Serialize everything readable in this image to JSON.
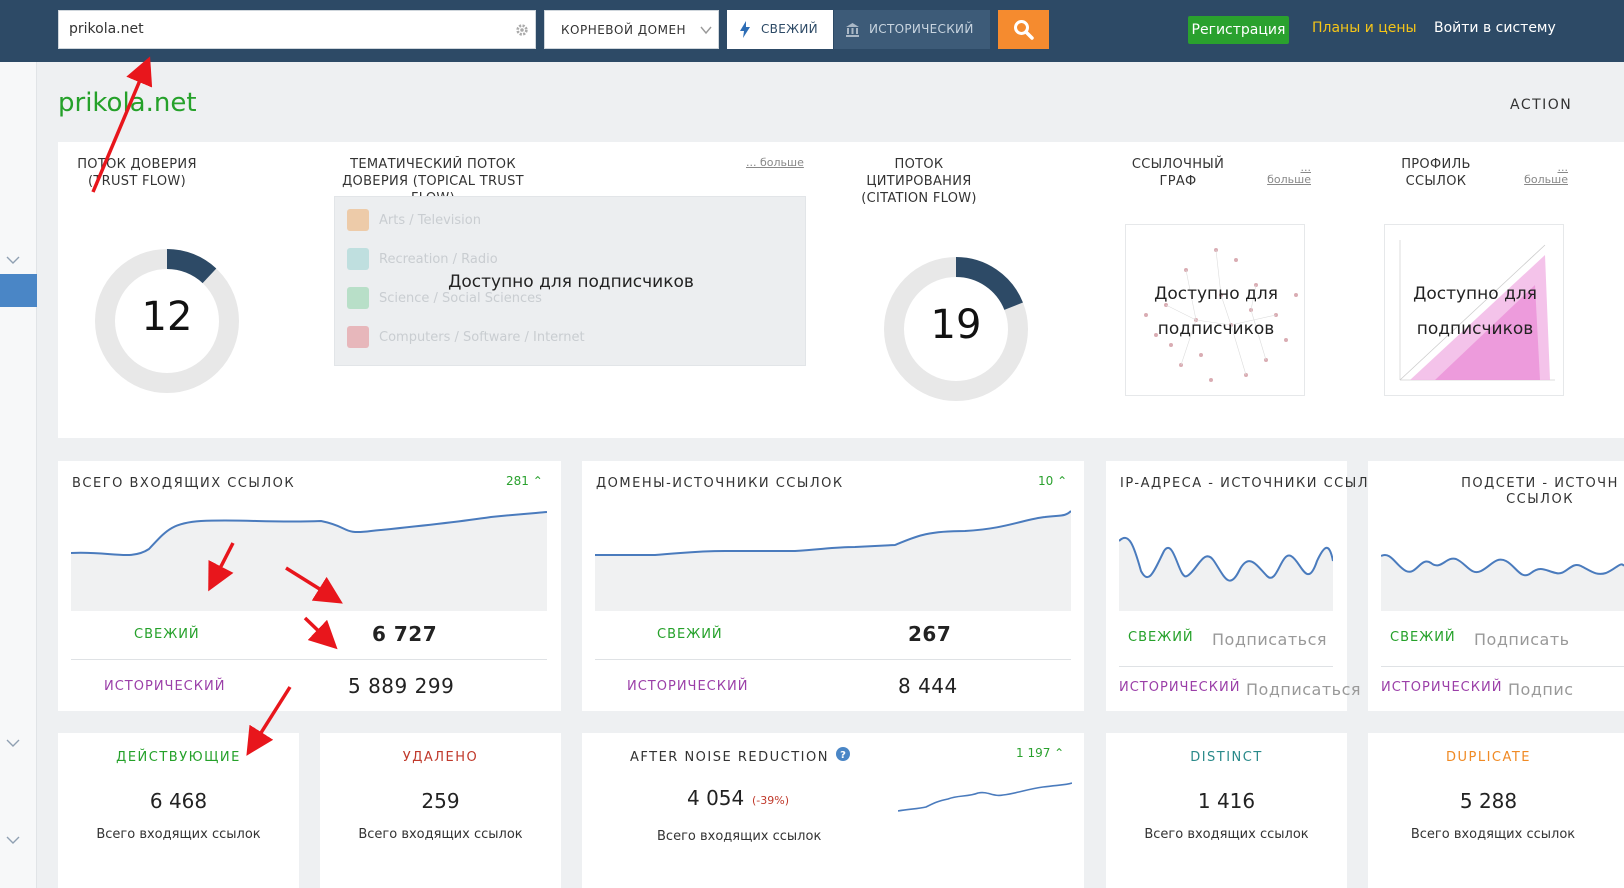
{
  "header": {
    "search_value": "prikola.net",
    "scope_select": "КОРНЕВОЙ ДОМЕН",
    "fresh_label": "СВЕЖИЙ",
    "historic_label": "ИСТОРИЧЕСКИЙ",
    "register_label": "Регистрация",
    "plans_label": "Планы и цены",
    "login_label": "Войти в систему"
  },
  "page": {
    "domain": "prikola.net",
    "actions_label": "ACTION"
  },
  "metrics": {
    "trust_flow": {
      "title": "ПОТОК ДОВЕРИЯ (TRUST FLOW)",
      "value": 12
    },
    "topical": {
      "title": "ТЕМАТИЧЕСКИЙ ПОТОК ДОВЕРИЯ (TOPICAL TRUST FLOW)",
      "more": "... больше",
      "locked": "Доступно для подписчиков",
      "topics": [
        {
          "label": "Arts / Television",
          "color": "#f08a24"
        },
        {
          "label": "Recreation / Radio",
          "color": "#6cc3c0"
        },
        {
          "label": "Science / Social Sciences",
          "color": "#58c27d"
        },
        {
          "label": "Computers / Software / Internet",
          "color": "#e0505a"
        }
      ]
    },
    "citation_flow": {
      "title": "ПОТОК ЦИТИРОВАНИЯ (CITATION FLOW)",
      "value": 19
    },
    "link_graph": {
      "title": "ССЫЛОЧНЫЙ ГРАФ",
      "more": "... больше",
      "locked_1": "Доступно для",
      "locked_2": "подписчиков"
    },
    "link_profile": {
      "title": "ПРОФИЛЬ ССЫЛОК",
      "more": "... больше",
      "locked_1": "Доступно для",
      "locked_2": "подписчиков"
    }
  },
  "cards": {
    "backlinks": {
      "title": "ВСЕГО ВХОДЯЩИХ ССЫЛОК",
      "delta": "281",
      "fresh_label": "СВЕЖИЙ",
      "fresh_value": "6 727",
      "hist_label": "ИСТОРИЧЕСКИЙ",
      "hist_value": "5 889 299"
    },
    "ref_domains": {
      "title": "ДОМЕНЫ-ИСТОЧНИКИ ССЫЛОК",
      "delta": "10",
      "fresh_label": "СВЕЖИЙ",
      "fresh_value": "267",
      "hist_label": "ИСТОРИЧЕСКИЙ",
      "hist_value": "8 444"
    },
    "ref_ips": {
      "title": "IP-АДРЕСА - ИСТОЧНИКИ ССЫЛОК",
      "fresh_label": "СВЕЖИЙ",
      "fresh_value": "Подписаться",
      "hist_label": "ИСТОРИЧЕСКИЙ",
      "hist_value": "Подписаться"
    },
    "ref_subnets": {
      "title_1": "ПОДСЕТИ - ИСТОЧН",
      "title_2": "ССЫЛОК",
      "fresh_label": "СВЕЖИЙ",
      "fresh_value": "Подписать",
      "hist_label": "ИСТОРИЧЕСКИЙ",
      "hist_value": "Подпис"
    }
  },
  "stats": {
    "live": {
      "title": "ДЕЙСТВУЮЩИЕ",
      "value": "6 468",
      "caption": "Всего входящих ссылок",
      "color": "#25a12a"
    },
    "deleted": {
      "title": "УДАЛЕНО",
      "value": "259",
      "caption": "Всего входящих ссылок",
      "color": "#c0392b"
    },
    "noise": {
      "title": "AFTER NOISE REDUCTION",
      "value": "4 054",
      "pct": "(-39%)",
      "delta": "1 197",
      "caption": "Всего входящих ссылок",
      "color": "#333333"
    },
    "distinct": {
      "title": "DISTINCT",
      "value": "1 416",
      "caption": "Всего входящих ссылок",
      "color": "#2a8a8a"
    },
    "duplicate": {
      "title": "DUPLICATE",
      "value": "5 288",
      "caption": "Всего входящих ссылок",
      "color": "#f08a24"
    }
  }
}
